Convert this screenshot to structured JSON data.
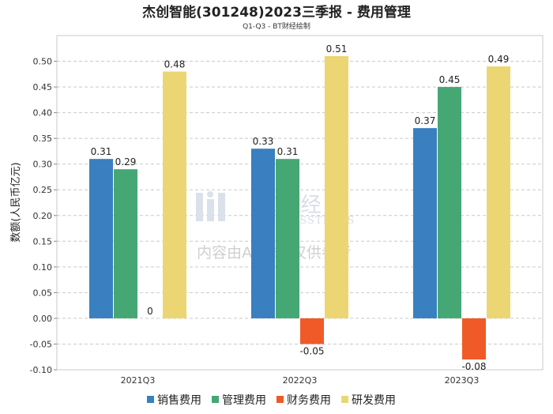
{
  "chart_data": {
    "type": "bar",
    "title": "杰创智能(301248)2023三季报 - 费用管理",
    "subtitle": "Q1-Q3 - BT财经绘制",
    "xlabel": "",
    "ylabel": "数额(人民币亿元)",
    "categories": [
      "2021Q3",
      "2022Q3",
      "2023Q3"
    ],
    "ylim": [
      -0.1,
      0.55
    ],
    "yticks": [
      -0.1,
      -0.05,
      0.0,
      0.05,
      0.1,
      0.15,
      0.2,
      0.25,
      0.3,
      0.35,
      0.4,
      0.45,
      0.5
    ],
    "grid": true,
    "legend_position": "bottom",
    "series": [
      {
        "name": "销售费用",
        "color": "#3a7fbf",
        "values": [
          0.31,
          0.33,
          0.37
        ],
        "labels": [
          "0.31",
          "0.33",
          "0.37"
        ]
      },
      {
        "name": "管理费用",
        "color": "#45a874",
        "values": [
          0.29,
          0.31,
          0.45
        ],
        "labels": [
          "0.29",
          "0.31",
          "0.45"
        ]
      },
      {
        "name": "财务费用",
        "color": "#f05a28",
        "values": [
          0,
          -0.05,
          -0.08
        ],
        "labels": [
          "0",
          "-0.05",
          "-0.08"
        ]
      },
      {
        "name": "研发费用",
        "color": "#ecd673",
        "values": [
          0.48,
          0.51,
          0.49
        ],
        "labels": [
          "0.48",
          "0.51",
          "0.49"
        ]
      }
    ]
  },
  "watermark": {
    "brand": "BT财经",
    "brand_sub": "BUSINESSTIMES",
    "note": "内容由AI生成,仅供参考"
  }
}
